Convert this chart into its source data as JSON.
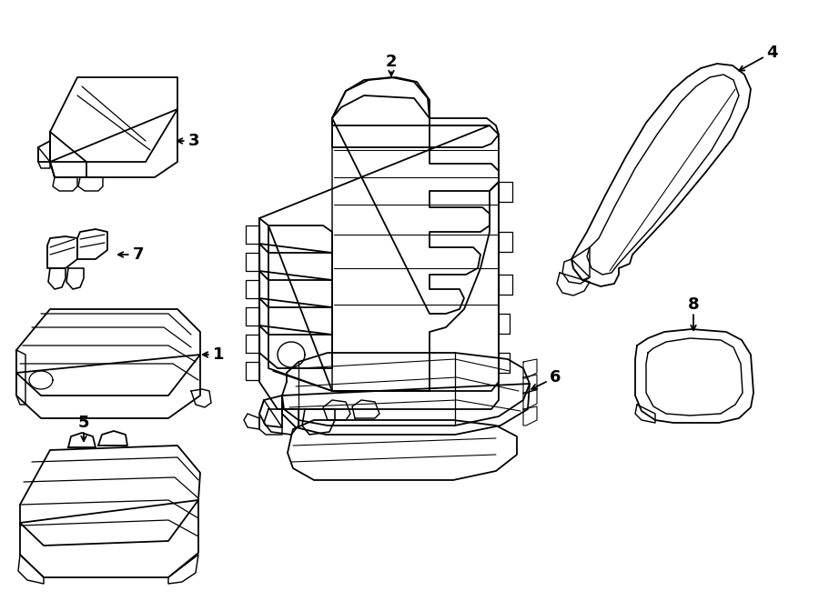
{
  "background_color": "#ffffff",
  "line_color": "#000000",
  "lw": 1.3,
  "fig_width": 9.0,
  "fig_height": 6.61,
  "dpi": 100
}
